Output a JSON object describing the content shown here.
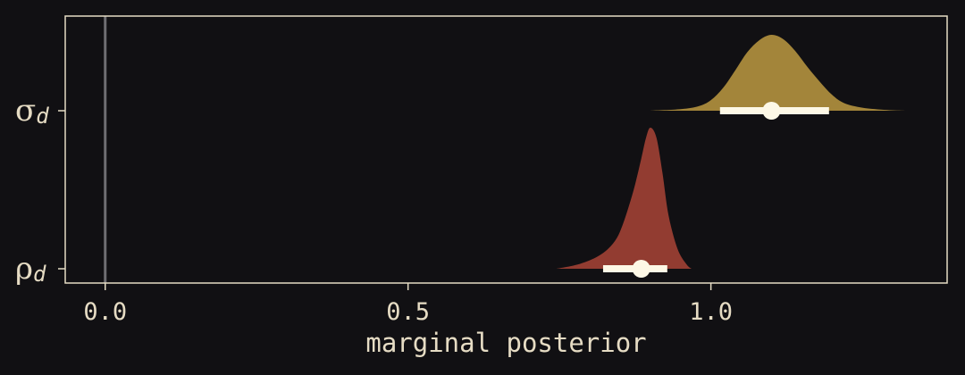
{
  "chart_data": {
    "type": "density",
    "xlabel": "marginal posterior",
    "xlim": [
      -0.066,
      1.39
    ],
    "xticks": [
      0.0,
      0.5,
      1.0
    ],
    "xtick_labels": [
      "0.0",
      "0.5",
      "1.0"
    ],
    "reference_line_x": 0.0,
    "categories": [
      {
        "label_main": "σ",
        "label_sub": "d"
      },
      {
        "label_main": "ρ",
        "label_sub": "d"
      }
    ],
    "series": [
      {
        "category": "σd",
        "color": "#a3853a",
        "point": 1.1,
        "interval": [
          1.015,
          1.195
        ],
        "density": {
          "x": [
            0.9,
            0.95,
            0.98,
            1.0,
            1.02,
            1.04,
            1.06,
            1.08,
            1.1,
            1.12,
            1.14,
            1.16,
            1.18,
            1.2,
            1.22,
            1.25,
            1.29,
            1.32
          ],
          "rel": [
            0.0,
            0.02,
            0.06,
            0.14,
            0.3,
            0.53,
            0.77,
            0.93,
            1.0,
            0.94,
            0.78,
            0.57,
            0.38,
            0.21,
            0.1,
            0.04,
            0.01,
            0.0
          ]
        }
      },
      {
        "category": "ρd",
        "color": "#923c31",
        "point": 0.885,
        "interval": [
          0.822,
          0.928
        ],
        "density": {
          "x": [
            0.745,
            0.78,
            0.81,
            0.83,
            0.845,
            0.855,
            0.865,
            0.875,
            0.885,
            0.893,
            0.9,
            0.91,
            0.92,
            0.93,
            0.945,
            0.96,
            0.968
          ],
          "rel": [
            0.0,
            0.03,
            0.08,
            0.14,
            0.22,
            0.32,
            0.45,
            0.6,
            0.78,
            0.93,
            1.0,
            0.93,
            0.68,
            0.38,
            0.14,
            0.03,
            0.0
          ]
        }
      }
    ],
    "colors": {
      "background": "#111013",
      "panel_border": "#e6dcc4",
      "text": "#e6dcc4",
      "interval": "#fdf8e6",
      "reference_line": "#6e6e72"
    }
  }
}
